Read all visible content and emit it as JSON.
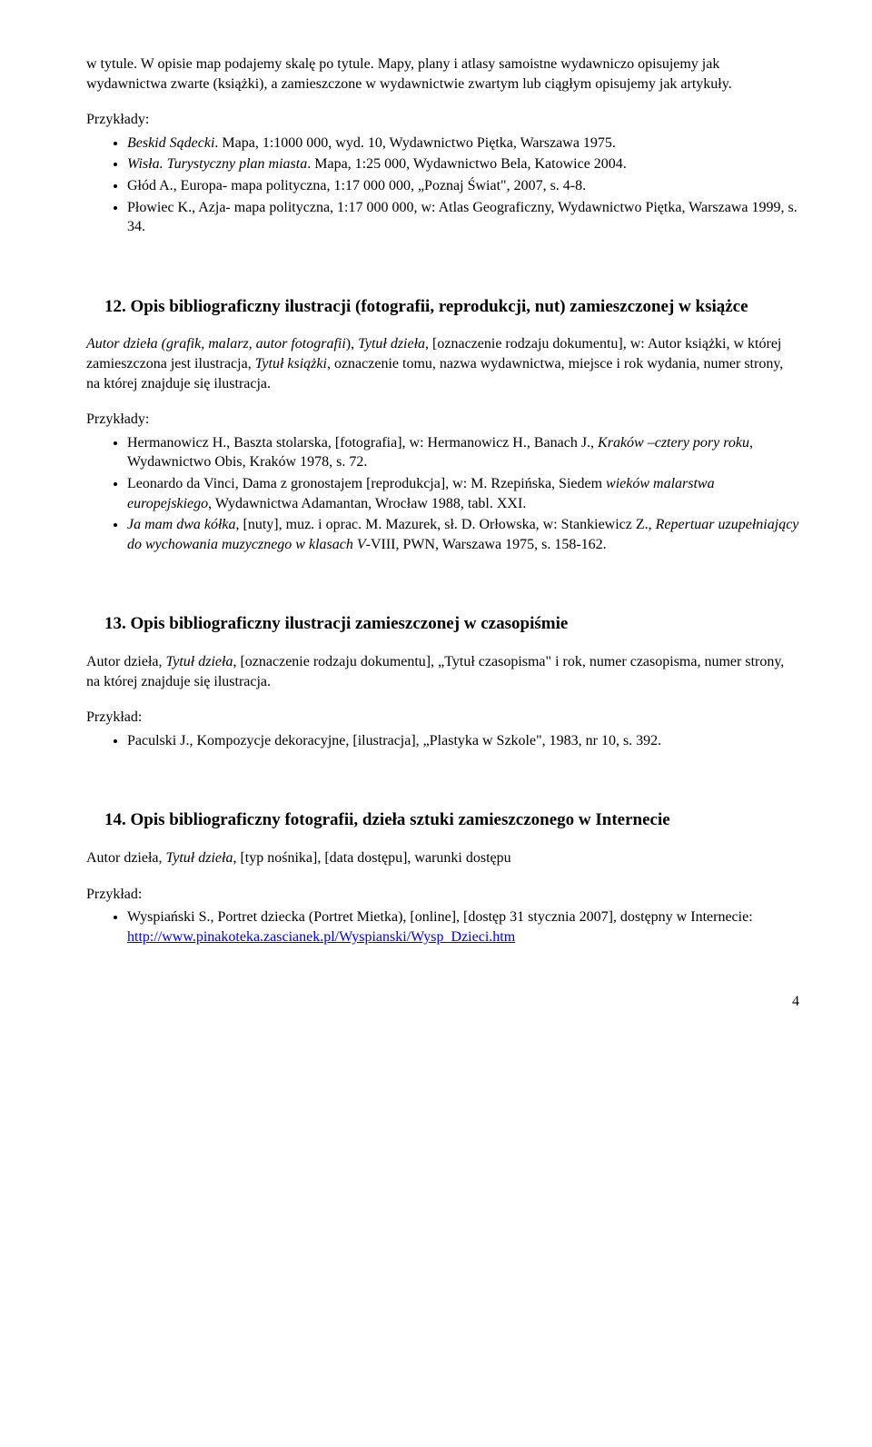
{
  "intro_para": "w tytule. W opisie map podajemy skalę po tytule. Mapy, plany i atlasy samoistne wydawniczo opisujemy jak wydawnictwa zwarte (książki), a zamieszczone w wydawnictwie zwartym lub ciągłym opisujemy jak artykuły.",
  "examples_label": "Przykłady:",
  "example_label_single": "Przykład:",
  "sec11_items": [
    {
      "pre": "Beskid Sądecki",
      "post": ". Mapa, 1:1000 000, wyd. 10, Wydawnictwo Piętka, Warszawa 1975."
    },
    {
      "pre": "Wisła. Turystyczny plan miasta",
      "post": ". Mapa, 1:25 000, Wydawnictwo Bela, Katowice 2004."
    },
    {
      "plain": "Głód A., Europa- mapa polityczna, 1:17 000 000, „Poznaj Świat\", 2007, s. 4-8."
    },
    {
      "plain": "Płowiec K., Azja- mapa polityczna, 1:17 000 000, w: Atlas Geograficzny, Wydawnictwo Piętka, Warszawa 1999, s. 34."
    }
  ],
  "sec12_heading": "12. Opis bibliograficzny ilustracji (fotografii, reprodukcji, nut) zamieszczonej w książce",
  "sec12_desc_parts": [
    {
      "t": "Autor dzieła (grafik, malarz, autor fotografii",
      "i": true
    },
    {
      "t": "), ",
      "i": false
    },
    {
      "t": "Tytuł dzieła",
      "i": true
    },
    {
      "t": ", [oznaczenie rodzaju dokumentu], w: Autor książki, w której zamieszczona jest ilustracja, ",
      "i": false
    },
    {
      "t": "Tytuł książki",
      "i": true
    },
    {
      "t": ", oznaczenie tomu, nazwa wydawnictwa, miejsce i rok wydania, numer strony, na której znajduje się ilustracja.",
      "i": false
    }
  ],
  "sec12_items": [
    {
      "parts": [
        {
          "t": "Hermanowicz H., Baszta stolarska, [fotografia], w: Hermanowicz H., Banach J., ",
          "i": false
        },
        {
          "t": "Kraków –cztery pory roku",
          "i": true
        },
        {
          "t": ", Wydawnictwo Obis, Kraków 1978, s. 72.",
          "i": false
        }
      ]
    },
    {
      "parts": [
        {
          "t": "Leonardo da Vinci, Dama z gronostajem [reprodukcja], w: M. Rzepińska, Siedem ",
          "i": false
        },
        {
          "t": "wieków malarstwa europejskiego",
          "i": true
        },
        {
          "t": ", Wydawnictwa Adamantan, Wrocław 1988, tabl. XXI.",
          "i": false
        }
      ]
    },
    {
      "parts": [
        {
          "t": "Ja mam dwa kółka",
          "i": true
        },
        {
          "t": ", [nuty], muz. i oprac. M. Mazurek, sł. D. Orłowska, w: Stankiewicz Z., ",
          "i": false
        },
        {
          "t": "Repertuar uzupełniający do wychowania muzycznego w klasach V",
          "i": true
        },
        {
          "t": "-VIII, PWN, Warszawa 1975, s. 158-162.",
          "i": false
        }
      ]
    }
  ],
  "sec13_heading": "13. Opis bibliograficzny ilustracji zamieszczonej w czasopiśmie",
  "sec13_desc_parts": [
    {
      "t": "Autor dzieła, ",
      "i": false
    },
    {
      "t": "Tytuł dzieła",
      "i": true
    },
    {
      "t": ", [oznaczenie rodzaju dokumentu], „Tytuł czasopisma\" i rok, numer czasopisma, numer strony, na której znajduje się ilustracja.",
      "i": false
    }
  ],
  "sec13_items": [
    {
      "plain": "Paculski J., Kompozycje dekoracyjne, [ilustracja], „Plastyka w Szkole\", 1983, nr 10, s. 392."
    }
  ],
  "sec14_heading": "14. Opis bibliograficzny fotografii, dzieła sztuki zamieszczonego w Internecie",
  "sec14_desc_parts": [
    {
      "t": "Autor dzieła, ",
      "i": false
    },
    {
      "t": "Tytuł dzieła",
      "i": true
    },
    {
      "t": ", [typ nośnika], [data dostępu], warunki dostępu",
      "i": false
    }
  ],
  "sec14_item_text": "Wyspiański S., Portret dziecka (Portret Mietka), [online], [dostęp 31 stycznia 2007], dostępny w Internecie:",
  "sec14_link": "http://www.pinakoteka.zascianek.pl/Wyspianski/Wysp_Dzieci.htm",
  "page_number": "4"
}
